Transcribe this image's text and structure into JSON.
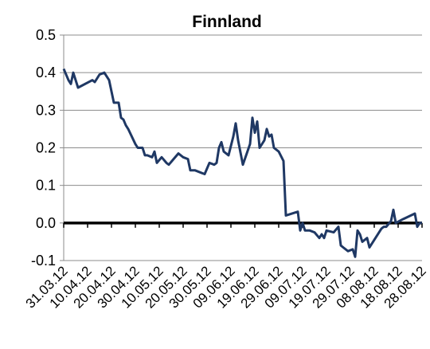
{
  "chart_data": {
    "type": "line",
    "title": "Finnland",
    "x": [
      "31.03.12",
      "02.04.12",
      "03.04.12",
      "04.04.12",
      "06.04.12",
      "12.04.12",
      "13.04.12",
      "15.04.12",
      "17.04.12",
      "19.04.12",
      "21.04.12",
      "23.04.12",
      "24.04.12",
      "25.04.12",
      "26.04.12",
      "27.04.12",
      "30.04.12",
      "01.05.12",
      "03.05.12",
      "04.05.12",
      "05.05.12",
      "07.05.12",
      "08.05.12",
      "09.05.12",
      "11.05.12",
      "13.05.12",
      "14.05.12",
      "16.05.12",
      "18.05.12",
      "20.05.12",
      "22.05.12",
      "23.05.12",
      "25.05.12",
      "29.05.12",
      "31.05.12",
      "02.06.12",
      "03.06.12",
      "04.06.12",
      "05.06.12",
      "06.06.12",
      "08.06.12",
      "10.06.12",
      "11.06.12",
      "12.06.12",
      "14.06.12",
      "17.06.12",
      "18.06.12",
      "19.06.12",
      "20.06.12",
      "21.06.12",
      "23.06.12",
      "24.06.12",
      "25.06.12",
      "26.06.12",
      "27.06.12",
      "29.06.12",
      "01.07.12",
      "02.07.12",
      "07.07.12",
      "08.07.12",
      "09.07.12",
      "10.07.12",
      "12.07.12",
      "14.07.12",
      "16.07.12",
      "17.07.12",
      "18.07.12",
      "19.07.12",
      "22.07.12",
      "24.07.12",
      "25.07.12",
      "26.07.12",
      "28.07.12",
      "30.07.12",
      "31.07.12",
      "01.08.12",
      "02.08.12",
      "03.08.12",
      "05.08.12",
      "06.08.12",
      "08.08.12",
      "11.08.12",
      "12.08.12",
      "13.08.12",
      "15.08.12",
      "16.08.12",
      "17.08.12",
      "20.08.12",
      "25.08.12",
      "26.08.12",
      "27.08.12",
      "28.08.12"
    ],
    "series": [
      {
        "color": "#1f3864",
        "values": [
          0.41,
          0.38,
          0.37,
          0.4,
          0.36,
          0.38,
          0.375,
          0.395,
          0.4,
          0.38,
          0.32,
          0.32,
          0.28,
          0.275,
          0.26,
          0.25,
          0.21,
          0.2,
          0.2,
          0.18,
          0.18,
          0.175,
          0.19,
          0.16,
          0.175,
          0.16,
          0.155,
          0.17,
          0.185,
          0.175,
          0.17,
          0.14,
          0.14,
          0.13,
          0.16,
          0.155,
          0.16,
          0.2,
          0.215,
          0.19,
          0.18,
          0.23,
          0.265,
          0.22,
          0.155,
          0.21,
          0.28,
          0.24,
          0.27,
          0.2,
          0.22,
          0.25,
          0.23,
          0.235,
          0.2,
          0.19,
          0.165,
          0.02,
          0.03,
          -0.02,
          0.0,
          -0.02,
          -0.02,
          -0.025,
          -0.04,
          -0.03,
          -0.04,
          -0.02,
          -0.025,
          -0.01,
          -0.06,
          -0.065,
          -0.075,
          -0.07,
          -0.09,
          -0.02,
          -0.03,
          -0.05,
          -0.04,
          -0.065,
          -0.045,
          -0.015,
          -0.01,
          -0.01,
          0.005,
          0.035,
          0.0,
          0.01,
          0.025,
          -0.01,
          0.0,
          0.0
        ]
      }
    ],
    "xlim": [
      "31.03.12",
      "28.08.12"
    ],
    "xticks": [
      "31.03.12",
      "10.04.12",
      "20.04.12",
      "30.04.12",
      "10.05.12",
      "20.05.12",
      "30.05.12",
      "09.06.12",
      "19.06.12",
      "29.06.12",
      "09.07.12",
      "19.07.12",
      "29.07.12",
      "08.08.12",
      "18.08.12",
      "28.08.12"
    ],
    "ylim": [
      -0.1,
      0.5
    ],
    "yticks": [
      -0.1,
      {
        "value": 0,
        "label": "0.0"
      },
      0.1,
      0.2,
      0.3,
      0.4,
      0.5
    ],
    "grid": true
  }
}
